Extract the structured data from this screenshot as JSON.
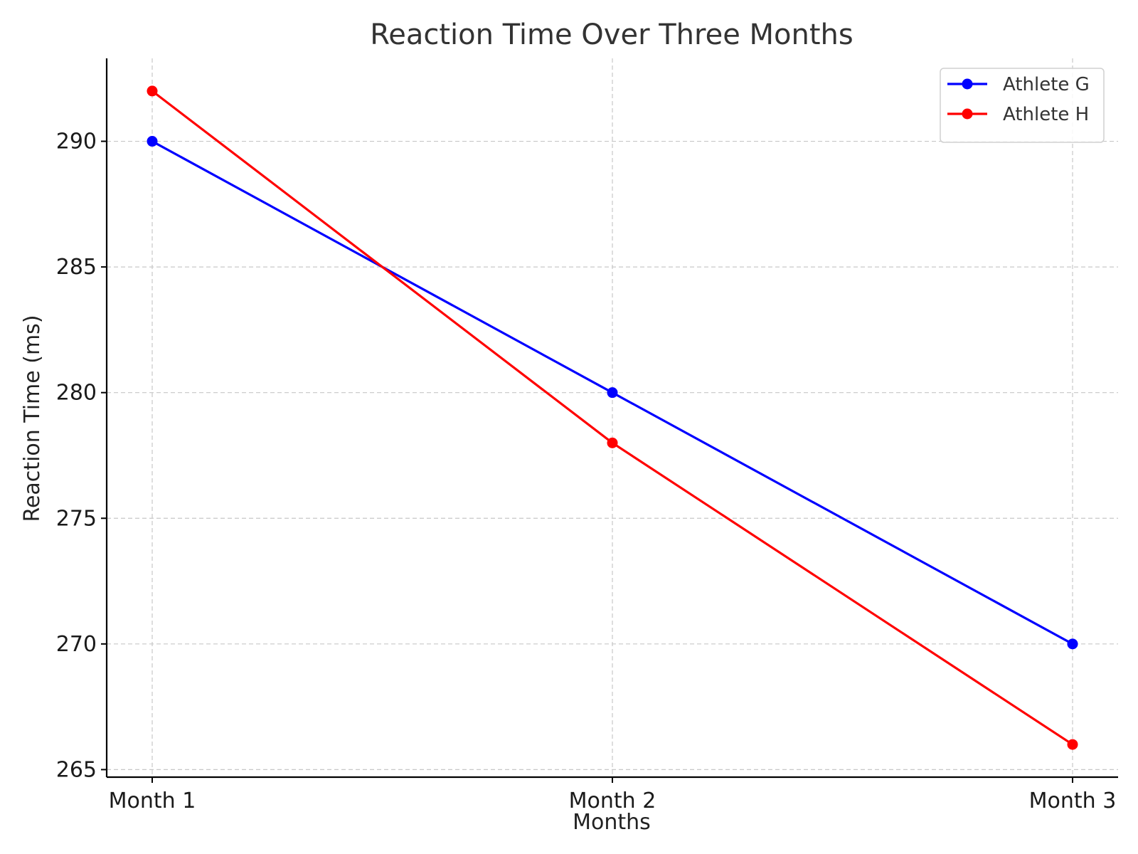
{
  "chart_data": {
    "type": "line",
    "title": "Reaction Time Over Three Months",
    "xlabel": "Months",
    "ylabel": "Reaction Time (ms)",
    "categories": [
      "Month 1",
      "Month 2",
      "Month 3"
    ],
    "ylim": [
      264.7,
      293.3
    ],
    "yticks": [
      265,
      270,
      275,
      280,
      285,
      290
    ],
    "grid": true,
    "legend_position": "top-right",
    "series": [
      {
        "name": "Athlete G",
        "color": "#0000ff",
        "values": [
          290,
          280,
          270
        ]
      },
      {
        "name": "Athlete H",
        "color": "#ff0000",
        "values": [
          292,
          278,
          266
        ]
      }
    ]
  }
}
